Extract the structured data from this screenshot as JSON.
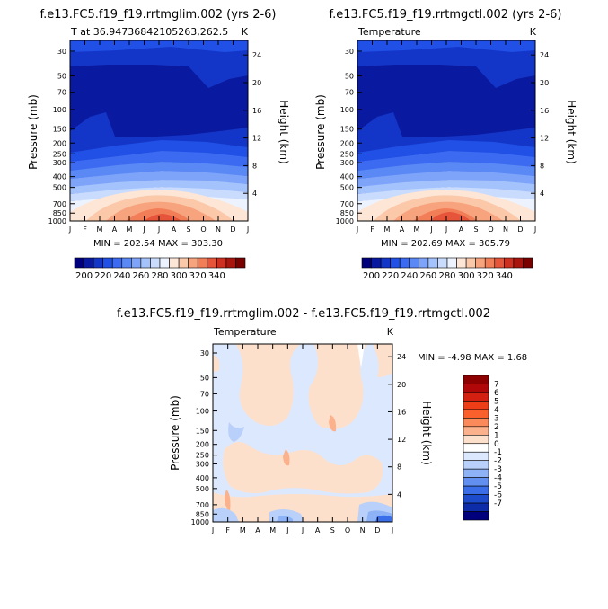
{
  "chart_data": [
    {
      "type": "contour",
      "title": "f.e13.FC5.f19_f19.rrtmglim.002 (yrs 2-6)",
      "subtitle_left": "T at 36.94736842105263,262.5",
      "subtitle_right": "K",
      "ylabel": "Pressure (mb)",
      "ylabel_right": "Height (km)",
      "x_ticks": [
        "J",
        "F",
        "M",
        "A",
        "M",
        "J",
        "J",
        "A",
        "S",
        "O",
        "N",
        "D",
        "J"
      ],
      "pressure_ticks": [
        "30",
        "50",
        "70",
        "100",
        "150",
        "200",
        "250",
        "300",
        "400",
        "500",
        "700",
        "850",
        "1000"
      ],
      "height_ticks": [
        "24",
        "20",
        "16",
        "12",
        "8",
        "4"
      ],
      "stats": "MIN = 202.54  MAX = 303.30"
    },
    {
      "type": "contour",
      "title": "f.e13.FC5.f19_f19.rrtmgctl.002 (yrs 2-6)",
      "subtitle_left": "Temperature",
      "subtitle_right": "K",
      "ylabel": "Pressure (mb)",
      "ylabel_right": "Height (km)",
      "x_ticks": [
        "J",
        "F",
        "M",
        "A",
        "M",
        "J",
        "J",
        "A",
        "S",
        "O",
        "N",
        "D",
        "J"
      ],
      "pressure_ticks": [
        "30",
        "50",
        "70",
        "100",
        "150",
        "200",
        "250",
        "300",
        "400",
        "500",
        "700",
        "850",
        "1000"
      ],
      "height_ticks": [
        "24",
        "20",
        "16",
        "12",
        "8",
        "4"
      ],
      "stats": "MIN = 202.69  MAX = 305.79"
    },
    {
      "type": "contour",
      "title": "f.e13.FC5.f19_f19.rrtmglim.002 - f.e13.FC5.f19_f19.rrtmgctl.002",
      "subtitle_left": "Temperature",
      "subtitle_right": "K",
      "ylabel": "Pressure (mb)",
      "ylabel_right": "Height (km)",
      "x_ticks": [
        "J",
        "F",
        "M",
        "A",
        "M",
        "J",
        "J",
        "A",
        "S",
        "O",
        "N",
        "D",
        "J"
      ],
      "pressure_ticks": [
        "30",
        "50",
        "70",
        "100",
        "150",
        "200",
        "250",
        "300",
        "400",
        "500",
        "700",
        "850",
        "1000"
      ],
      "height_ticks": [
        "24",
        "20",
        "16",
        "12",
        "8",
        "4"
      ],
      "stats": "MIN =   -4.98 MAX =    1.68"
    }
  ],
  "colorbar_temp": {
    "labels": [
      "200",
      "220",
      "240",
      "260",
      "280",
      "300",
      "320",
      "340"
    ],
    "colors": [
      "#00007d",
      "#0a1aa0",
      "#1436c8",
      "#2050e6",
      "#3c6af0",
      "#5a88f5",
      "#7ea4fa",
      "#a4c2fc",
      "#cadcfe",
      "#ecf3ff",
      "#fde6d6",
      "#fbc8aa",
      "#f7a47e",
      "#f27e58",
      "#e6543a",
      "#cd3020",
      "#a8140e",
      "#7a0000"
    ]
  },
  "colorbar_diff": {
    "labels": [
      "7",
      "6",
      "5",
      "4",
      "3",
      "2",
      "1",
      "0",
      "-1",
      "-2",
      "-3",
      "-4",
      "-5",
      "-6",
      "-7"
    ],
    "colors": [
      "#8c0000",
      "#b00808",
      "#d42010",
      "#ee3e18",
      "#f9602c",
      "#fb8a5a",
      "#fbb28c",
      "#fde0cc",
      "#ffffff",
      "#dce8fd",
      "#b8d0fa",
      "#8eb2f6",
      "#6290f0",
      "#3a6ee8",
      "#1c4ccc",
      "#0c2ca8",
      "#00007d"
    ]
  },
  "colors": {
    "deep_blue": "#0a1aa0",
    "mid_blue": "#1436c8",
    "pale_orange": "#fde6d6",
    "diff_pos": "#fde0cc",
    "diff_neg": "#dce8fd"
  }
}
